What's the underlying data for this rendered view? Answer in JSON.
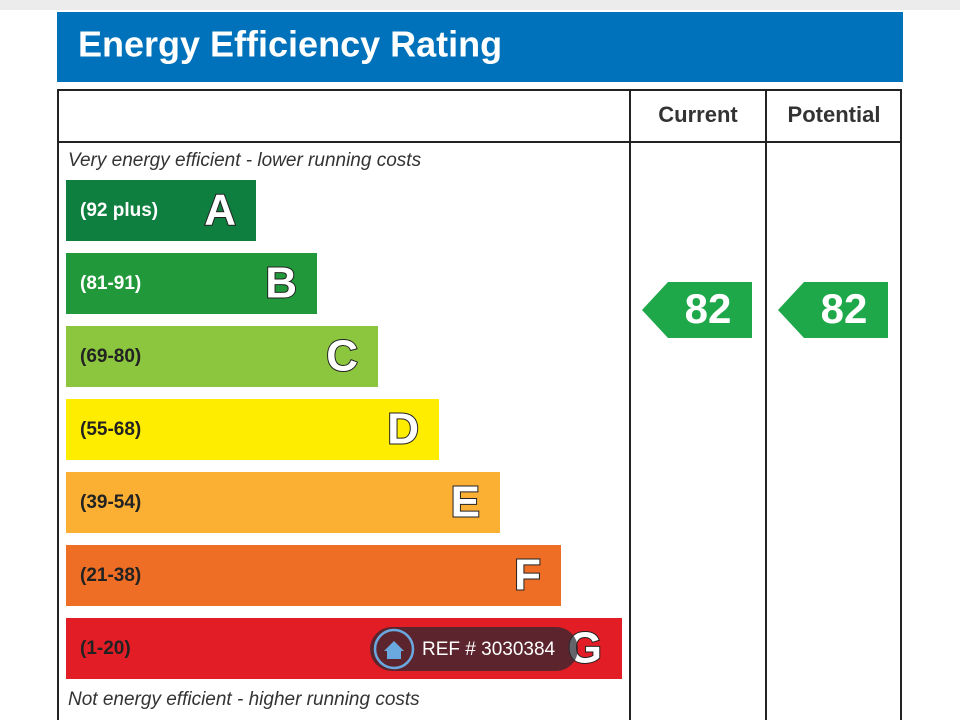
{
  "header": {
    "title": "Energy Efficiency Rating"
  },
  "columns": {
    "current": "Current",
    "potential": "Potential"
  },
  "notes": {
    "top": "Very energy efficient - lower running costs",
    "bottom": "Not energy efficient - higher running costs"
  },
  "bands": [
    {
      "range": "(92 plus)",
      "letter": "A",
      "color": "#0f7f3f",
      "text_color": "#ffffff"
    },
    {
      "range": "(81-91)",
      "letter": "B",
      "color": "#21993a",
      "text_color": "#ffffff"
    },
    {
      "range": "(69-80)",
      "letter": "C",
      "color": "#8cc63f",
      "text_color": "#222222"
    },
    {
      "range": "(55-68)",
      "letter": "D",
      "color": "#ffed00",
      "text_color": "#222222"
    },
    {
      "range": "(39-54)",
      "letter": "E",
      "color": "#fbb034",
      "text_color": "#222222"
    },
    {
      "range": "(21-38)",
      "letter": "F",
      "color": "#ee6e25",
      "text_color": "#222222"
    },
    {
      "range": "(1-20)",
      "letter": "G",
      "color": "#e31d25",
      "text_color": "#222222"
    }
  ],
  "ratings": {
    "current": 82,
    "potential": 82,
    "color": "#1fa84a"
  },
  "watermark": {
    "text": "REF # 3030384"
  }
}
